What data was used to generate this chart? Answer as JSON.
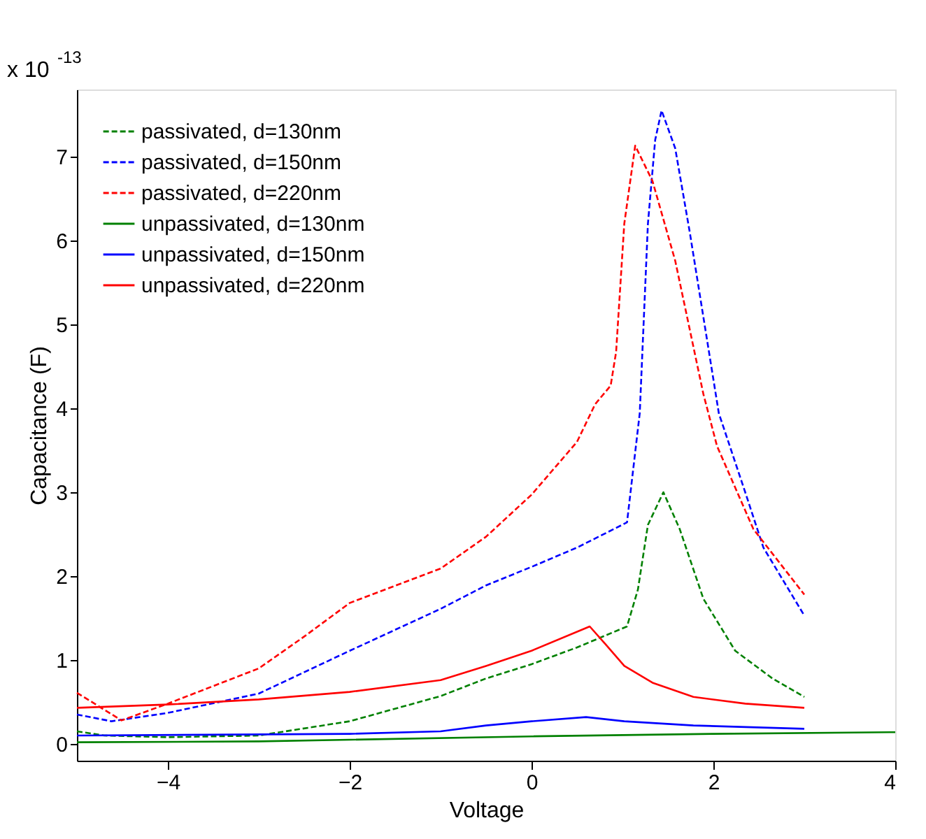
{
  "chart_data": {
    "type": "line",
    "xlabel": "Voltage",
    "ylabel": "Capacitance (F)",
    "annotations": [
      "x 10$^{-13}$"
    ],
    "xlim": [
      -5,
      4
    ],
    "xticks": [
      -4,
      -2,
      0,
      2,
      4
    ],
    "ylim": [
      -0.2,
      7.8
    ],
    "yticks": [
      0,
      1,
      2,
      3,
      4,
      5,
      6,
      7
    ],
    "grid": false,
    "legend": "top left",
    "marker": "none",
    "series": [
      {
        "name": "passivated, d=130nm",
        "color": "#008000",
        "line_style": "dashed",
        "x": [
          -5,
          -4.7,
          -4,
          -3,
          -2,
          -1,
          -0.5,
          0,
          0.5,
          1.05,
          1.17,
          1.28,
          1.45,
          1.63,
          1.89,
          2.24,
          2.65,
          3
        ],
        "values": [
          0.15,
          0.1,
          0.08,
          0.1,
          0.27,
          0.57,
          0.78,
          0.95,
          1.15,
          1.4,
          1.84,
          2.61,
          3.0,
          2.56,
          1.73,
          1.11,
          0.78,
          0.56
        ]
      },
      {
        "name": "passivated, d=150nm",
        "color": "#0000ff",
        "line_style": "dashed",
        "x": [
          -5,
          -4.62,
          -4,
          -3,
          -2,
          -1,
          -0.5,
          0,
          0.5,
          1.05,
          1.19,
          1.28,
          1.36,
          1.43,
          1.58,
          1.74,
          2.06,
          2.35,
          2.55,
          3
        ],
        "values": [
          0.35,
          0.27,
          0.37,
          0.6,
          1.11,
          1.61,
          1.89,
          2.11,
          2.34,
          2.64,
          3.94,
          6.2,
          7.2,
          7.55,
          7.1,
          6.1,
          3.94,
          3.0,
          2.34,
          1.53
        ]
      },
      {
        "name": "passivated, d=220nm",
        "color": "#ff0000",
        "line_style": "dashed",
        "x": [
          -5,
          -4.51,
          -4,
          -3,
          -2.5,
          -2,
          -1,
          -0.5,
          0,
          0.5,
          0.7,
          0.87,
          0.93,
          1.02,
          1.14,
          1.33,
          1.58,
          1.89,
          2.04,
          2.44,
          3
        ],
        "values": [
          0.61,
          0.28,
          0.48,
          0.9,
          1.28,
          1.68,
          2.09,
          2.47,
          2.97,
          3.6,
          4.05,
          4.27,
          4.67,
          6.2,
          7.13,
          6.71,
          5.76,
          4.17,
          3.55,
          2.56,
          1.78
        ]
      },
      {
        "name": "unpassivated, d=130nm",
        "color": "#008000",
        "line_style": "solid",
        "x": [
          -5,
          -3,
          -2,
          0,
          2,
          4
        ],
        "values": [
          0.02,
          0.03,
          0.05,
          0.09,
          0.12,
          0.14
        ]
      },
      {
        "name": "unpassivated, d=150nm",
        "color": "#0000ff",
        "line_style": "solid",
        "x": [
          -5,
          -2,
          -1,
          -0.5,
          0,
          0.6,
          1.02,
          1.78,
          3
        ],
        "values": [
          0.1,
          0.12,
          0.15,
          0.22,
          0.27,
          0.32,
          0.27,
          0.22,
          0.18
        ]
      },
      {
        "name": "unpassivated, d=220nm",
        "color": "#ff0000",
        "line_style": "solid",
        "x": [
          -5,
          -4,
          -3,
          -2,
          -1,
          -0.5,
          0,
          0.64,
          0.82,
          1.02,
          1.33,
          1.78,
          2.35,
          3
        ],
        "values": [
          0.43,
          0.47,
          0.53,
          0.62,
          0.76,
          0.93,
          1.11,
          1.4,
          1.18,
          0.93,
          0.73,
          0.56,
          0.48,
          0.43
        ]
      }
    ]
  }
}
